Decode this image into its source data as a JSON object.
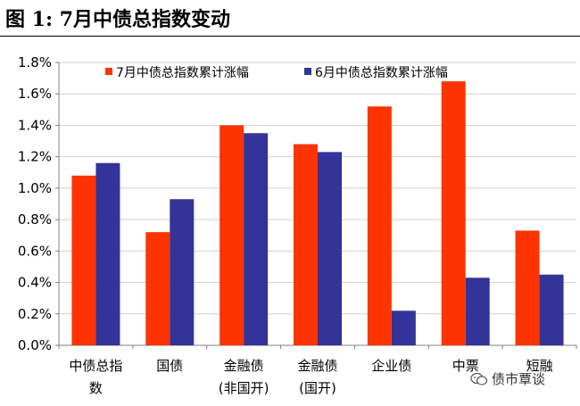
{
  "figure": {
    "title": "图 1:  7月中债总指数变动"
  },
  "watermark": {
    "text": "债市覃谈",
    "icon": "wechat-icon"
  },
  "chart_data": {
    "type": "bar",
    "categories": [
      [
        "中债总指",
        "数"
      ],
      [
        "国债"
      ],
      [
        "金融债",
        "(非国开)"
      ],
      [
        "金融债",
        "(国开)"
      ],
      [
        "企业债"
      ],
      [
        "中票"
      ],
      [
        "短融"
      ]
    ],
    "series": [
      {
        "name": "7月中债总指数累计涨幅",
        "color": "#FF3300",
        "values": [
          1.08,
          0.72,
          1.4,
          1.28,
          1.52,
          1.68,
          0.73
        ]
      },
      {
        "name": "6月中债总指数累计涨幅",
        "color": "#333399",
        "values": [
          1.16,
          0.93,
          1.35,
          1.23,
          0.22,
          0.43,
          0.45
        ]
      }
    ],
    "ylim": [
      0,
      1.8
    ],
    "yticks": [
      "0.0%",
      "0.2%",
      "0.4%",
      "0.6%",
      "0.8%",
      "1.0%",
      "1.2%",
      "1.4%",
      "1.6%",
      "1.8%"
    ],
    "grid": true,
    "legend_position": "top"
  }
}
